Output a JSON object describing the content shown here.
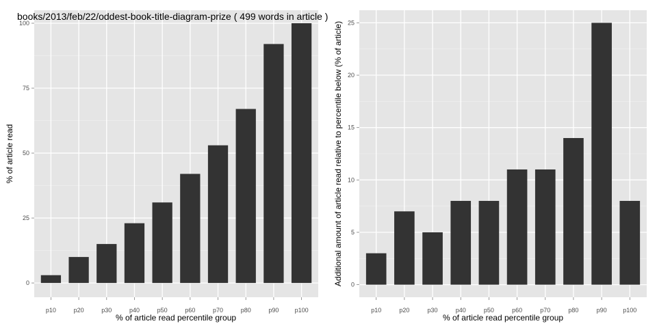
{
  "chart_data": [
    {
      "type": "bar",
      "title": "books/2013/feb/22/oddest-book-title-diagram-prize ( 499 words in article )",
      "xlabel": "% of article read percentile group",
      "ylabel": "% of article read",
      "categories": [
        "p10",
        "p20",
        "p30",
        "p40",
        "p50",
        "p60",
        "p70",
        "p80",
        "p90",
        "p100"
      ],
      "values": [
        3,
        10,
        15,
        23,
        31,
        42,
        53,
        67,
        92,
        100
      ],
      "yticks": [
        0,
        25,
        50,
        75,
        100
      ],
      "ylim": [
        -5.5,
        105
      ],
      "grid": true,
      "bar_color": "#333333",
      "panel_color": "#e5e5e5"
    },
    {
      "type": "bar",
      "title": "",
      "xlabel": "% of article read percentile group",
      "ylabel": "Additional amount of article read relative to percentile below (% of article)",
      "categories": [
        "p10",
        "p20",
        "p30",
        "p40",
        "p50",
        "p60",
        "p70",
        "p80",
        "p90",
        "p100"
      ],
      "values": [
        3,
        7,
        5,
        8,
        8,
        11,
        11,
        14,
        25,
        8
      ],
      "yticks": [
        0,
        5,
        10,
        15,
        20,
        25
      ],
      "ylim": [
        -1.2,
        26.2
      ],
      "grid": true,
      "bar_color": "#333333",
      "panel_color": "#e5e5e5"
    }
  ]
}
